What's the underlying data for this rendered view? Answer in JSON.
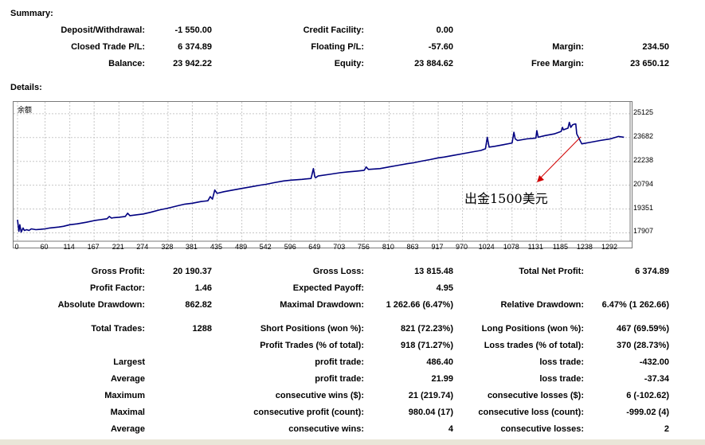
{
  "summary": {
    "title": "Summary:",
    "deposit_label": "Deposit/Withdrawal:",
    "deposit_value": "-1 550.00",
    "credit_label": "Credit Facility:",
    "credit_value": "0.00",
    "closed_label": "Closed Trade P/L:",
    "closed_value": "6 374.89",
    "floating_label": "Floating P/L:",
    "floating_value": "-57.60",
    "margin_label": "Margin:",
    "margin_value": "234.50",
    "balance_label": "Balance:",
    "balance_value": "23 942.22",
    "equity_label": "Equity:",
    "equity_value": "23 884.62",
    "free_margin_label": "Free Margin:",
    "free_margin_value": "23 650.12"
  },
  "details": {
    "title": "Details:"
  },
  "chart_data": {
    "type": "line",
    "title": "余额",
    "ylim": [
      17400,
      25600
    ],
    "xlim": [
      0,
      1325
    ],
    "y_ticks": [
      17907,
      19351,
      20794,
      22238,
      23682,
      25125
    ],
    "y_tick_labels": [
      "17907",
      "19351",
      "20794",
      "22238",
      "23682",
      "25125"
    ],
    "x_ticks": [
      0,
      60,
      114,
      167,
      221,
      274,
      328,
      381,
      435,
      489,
      542,
      596,
      649,
      703,
      756,
      810,
      863,
      917,
      970,
      1024,
      1078,
      1131,
      1185,
      1238,
      1292
    ],
    "x_tick_labels": [
      "0",
      "60",
      "114",
      "167",
      "221",
      "274",
      "328",
      "381",
      "435",
      "489",
      "542",
      "596",
      "649",
      "703",
      "756",
      "810",
      "863",
      "917",
      "970",
      "1024",
      "1078",
      "1131",
      "1185",
      "1238",
      "1292"
    ],
    "grid": true,
    "line_color": "#000080",
    "series": [
      {
        "x": [
          0,
          3,
          5,
          8,
          12,
          15,
          20,
          25,
          30,
          40,
          50,
          60,
          70,
          80,
          90,
          100,
          114,
          130,
          150,
          167,
          180,
          195,
          200,
          205,
          210,
          221,
          235,
          240,
          245,
          260,
          274,
          290,
          310,
          328,
          350,
          365,
          381,
          400,
          415,
          420,
          425,
          430,
          435,
          450,
          470,
          489,
          510,
          530,
          542,
          560,
          580,
          596,
          620,
          640,
          645,
          648,
          650,
          655,
          680,
          703,
          720,
          740,
          756,
          760,
          765,
          790,
          810,
          830,
          850,
          863,
          880,
          900,
          917,
          930,
          950,
          970,
          990,
          1010,
          1020,
          1024,
          1028,
          1040,
          1060,
          1078,
          1082,
          1085,
          1090,
          1110,
          1130,
          1132,
          1135,
          1150,
          1170,
          1185,
          1188,
          1190,
          1195,
          1200,
          1203,
          1206,
          1210,
          1215,
          1217,
          1219,
          1230,
          1250,
          1270,
          1292,
          1310,
          1322
        ],
        "y": [
          18700,
          18000,
          18400,
          17950,
          18200,
          18050,
          18100,
          18050,
          18150,
          18100,
          18120,
          18150,
          18200,
          18230,
          18260,
          18300,
          18400,
          18450,
          18550,
          18650,
          18700,
          18760,
          18900,
          18800,
          18830,
          18850,
          18900,
          19100,
          18950,
          19000,
          19050,
          19150,
          19300,
          19400,
          19550,
          19650,
          19700,
          19800,
          19850,
          20100,
          19950,
          20500,
          20300,
          20400,
          20500,
          20600,
          20700,
          20800,
          20850,
          20950,
          21050,
          21100,
          21150,
          21200,
          21800,
          21300,
          21250,
          21350,
          21450,
          21550,
          21600,
          21650,
          21700,
          21900,
          21750,
          21800,
          21900,
          22000,
          22100,
          22150,
          22250,
          22350,
          22450,
          22500,
          22600,
          22700,
          22800,
          22900,
          23000,
          23700,
          23100,
          23150,
          23250,
          23350,
          24000,
          23600,
          23500,
          23600,
          23650,
          24100,
          23700,
          23800,
          23900,
          24050,
          24300,
          24150,
          24200,
          24250,
          24600,
          24300,
          24450,
          24500,
          24500,
          23900,
          23300,
          23400,
          23500,
          23600,
          23750,
          23700
        ]
      }
    ]
  },
  "annotation": {
    "text": "出金1500美元"
  },
  "stats": {
    "gross_profit_label": "Gross Profit:",
    "gross_profit_value": "20 190.37",
    "gross_loss_label": "Gross Loss:",
    "gross_loss_value": "13 815.48",
    "total_net_profit_label": "Total Net Profit:",
    "total_net_profit_value": "6 374.89",
    "profit_factor_label": "Profit Factor:",
    "profit_factor_value": "1.46",
    "expected_payoff_label": "Expected Payoff:",
    "expected_payoff_value": "4.95",
    "absolute_drawdown_label": "Absolute Drawdown:",
    "absolute_drawdown_value": "862.82",
    "maximal_drawdown_label": "Maximal Drawdown:",
    "maximal_drawdown_value": "1 262.66 (6.47%)",
    "relative_drawdown_label": "Relative Drawdown:",
    "relative_drawdown_value": "6.47% (1 262.66)",
    "total_trades_label": "Total Trades:",
    "total_trades_value": "1288",
    "short_positions_label": "Short Positions (won %):",
    "short_positions_value": "821 (72.23%)",
    "long_positions_label": "Long Positions (won %):",
    "long_positions_value": "467 (69.59%)",
    "profit_trades_label": "Profit Trades (% of total):",
    "profit_trades_value": "918 (71.27%)",
    "loss_trades_label": "Loss trades (% of total):",
    "loss_trades_value": "370 (28.73%)",
    "largest_label": "Largest",
    "largest_profit_label": "profit trade:",
    "largest_profit_value": "486.40",
    "largest_loss_label": "loss trade:",
    "largest_loss_value": "-432.00",
    "average_label": "Average",
    "average_profit_label": "profit trade:",
    "average_profit_value": "21.99",
    "average_loss_label": "loss trade:",
    "average_loss_value": "-37.34",
    "maximum_label": "Maximum",
    "max_cons_wins_label": "consecutive wins ($):",
    "max_cons_wins_value": "21 (219.74)",
    "max_cons_losses_label": "consecutive losses ($):",
    "max_cons_losses_value": "6 (-102.62)",
    "maximal_label": "Maximal",
    "maximal_cons_profit_label": "consecutive profit (count):",
    "maximal_cons_profit_value": "980.04 (17)",
    "maximal_cons_loss_label": "consecutive loss (count):",
    "maximal_cons_loss_value": "-999.02 (4)",
    "average2_label": "Average",
    "avg_cons_wins_label": "consecutive wins:",
    "avg_cons_wins_value": "4",
    "avg_cons_losses_label": "consecutive losses:",
    "avg_cons_losses_value": "2"
  }
}
